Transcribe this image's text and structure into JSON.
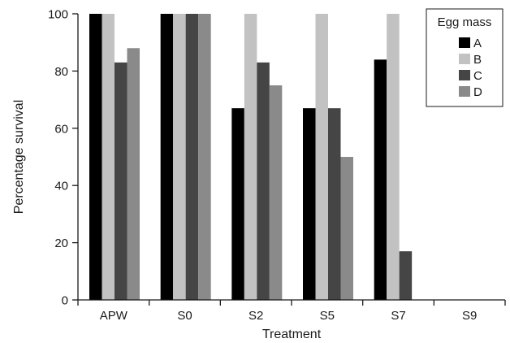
{
  "chart_data": {
    "type": "bar",
    "xlabel": "Treatment",
    "ylabel": "Percentage survival",
    "ylim": [
      0,
      100
    ],
    "yticks": [
      0,
      20,
      40,
      60,
      80,
      100
    ],
    "categories": [
      "APW",
      "S0",
      "S2",
      "S5",
      "S7",
      "S9"
    ],
    "legend": {
      "title": "Egg mass",
      "placement": "top-right"
    },
    "series": [
      {
        "name": "A",
        "color": "#000000",
        "values": [
          100,
          100,
          67,
          67,
          84,
          0
        ]
      },
      {
        "name": "B",
        "color": "#c2c2c2",
        "values": [
          100,
          100,
          100,
          100,
          100,
          0
        ]
      },
      {
        "name": "C",
        "color": "#454545",
        "values": [
          83,
          100,
          83,
          67,
          17,
          0
        ]
      },
      {
        "name": "D",
        "color": "#8a8a8a",
        "values": [
          88,
          100,
          75,
          50,
          0,
          0
        ]
      }
    ],
    "grid": false
  }
}
